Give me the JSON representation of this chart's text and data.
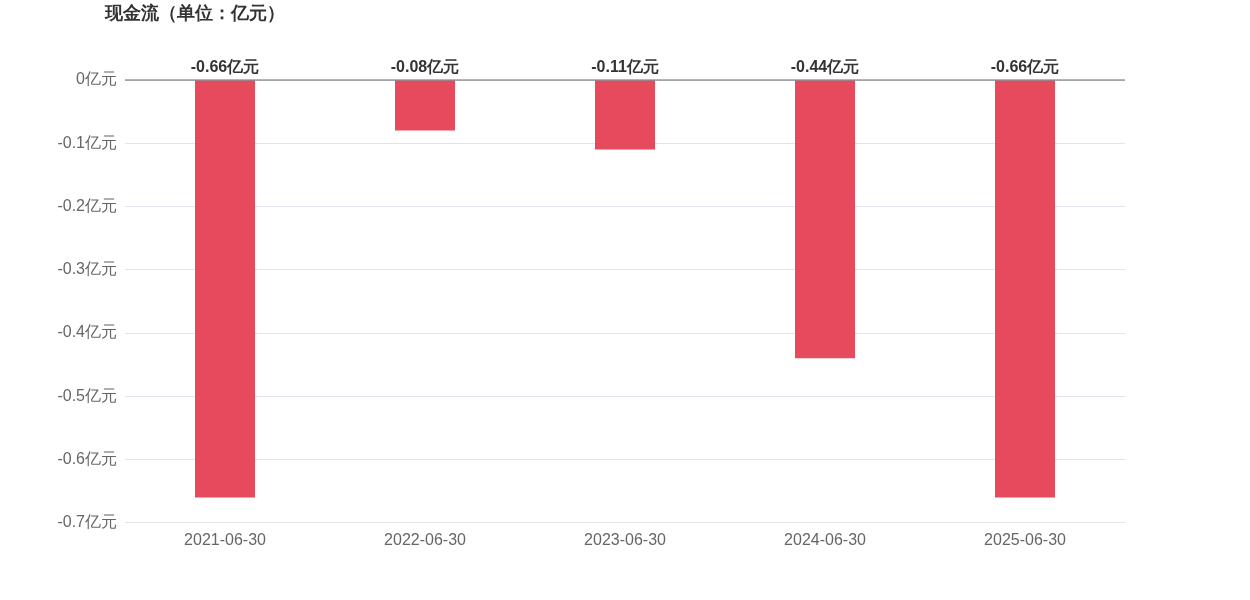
{
  "chart_data": {
    "type": "bar",
    "title": "现金流（单位：亿元）",
    "categories": [
      "2021-06-30",
      "2022-06-30",
      "2023-06-30",
      "2024-06-30",
      "2025-06-30"
    ],
    "values": [
      -0.66,
      -0.08,
      -0.11,
      -0.44,
      -0.66
    ],
    "value_labels": [
      "-0.66亿元",
      "-0.08亿元",
      "-0.11亿元",
      "-0.44亿元",
      "-0.66亿元"
    ],
    "color": "#e64b5d",
    "ylim": [
      -0.7,
      0
    ],
    "yticks": [
      {
        "value": 0,
        "label": "0亿元"
      },
      {
        "value": -0.1,
        "label": "-0.1亿元"
      },
      {
        "value": -0.2,
        "label": "-0.2亿元"
      },
      {
        "value": -0.3,
        "label": "-0.3亿元"
      },
      {
        "value": -0.4,
        "label": "-0.4亿元"
      },
      {
        "value": -0.5,
        "label": "-0.5亿元"
      },
      {
        "value": -0.6,
        "label": "-0.6亿元"
      },
      {
        "value": -0.7,
        "label": "-0.7亿元"
      }
    ],
    "grid": "y",
    "legend": false
  }
}
